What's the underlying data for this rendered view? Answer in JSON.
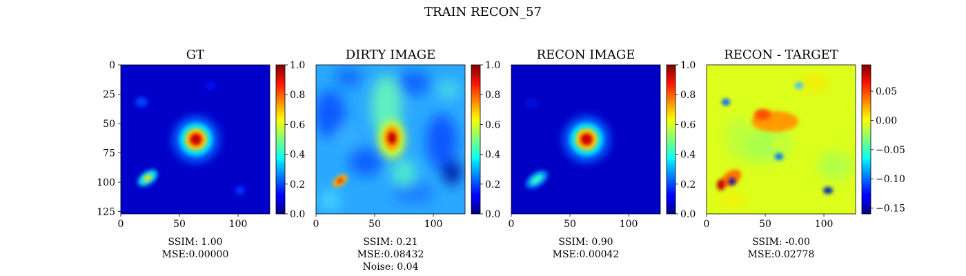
{
  "figure": {
    "suptitle": "TRAIN RECON_57"
  },
  "chart_data": [
    {
      "type": "heatmap",
      "title": "GT",
      "x_ticks": [
        0,
        50,
        100
      ],
      "y_ticks": [
        0,
        25,
        50,
        75,
        100,
        125
      ],
      "xlim": [
        0,
        127
      ],
      "ylim": [
        127,
        0
      ],
      "show_y_ticks": true,
      "colormap": "jet",
      "colorbar": {
        "min": 0.0,
        "max": 1.0,
        "ticks": [
          0.0,
          0.2,
          0.4,
          0.6,
          0.8,
          1.0
        ],
        "tick_labels": [
          "0.0",
          "0.2",
          "0.4",
          "0.6",
          "0.8",
          "1.0"
        ]
      },
      "caption": [
        "SSIM: 1.00",
        "MSE:0.00000"
      ]
    },
    {
      "type": "heatmap",
      "title": "DIRTY IMAGE",
      "x_ticks": [
        0,
        50,
        100
      ],
      "xlim": [
        0,
        127
      ],
      "ylim": [
        127,
        0
      ],
      "show_y_ticks": false,
      "colormap": "jet",
      "colorbar": {
        "min": 0.0,
        "max": 1.0,
        "ticks": [
          0.0,
          0.2,
          0.4,
          0.6,
          0.8,
          1.0
        ],
        "tick_labels": [
          "0.0",
          "0.2",
          "0.4",
          "0.6",
          "0.8",
          "1.0"
        ]
      },
      "caption": [
        "SSIM: 0.21",
        "MSE:0.08432",
        "Noise: 0.04"
      ]
    },
    {
      "type": "heatmap",
      "title": "RECON IMAGE",
      "x_ticks": [
        0,
        50,
        100
      ],
      "xlim": [
        0,
        127
      ],
      "ylim": [
        127,
        0
      ],
      "show_y_ticks": false,
      "colormap": "jet",
      "colorbar": {
        "min": 0.0,
        "max": 1.0,
        "ticks": [
          0.0,
          0.2,
          0.4,
          0.6,
          0.8,
          1.0
        ],
        "tick_labels": [
          "0.0",
          "0.2",
          "0.4",
          "0.6",
          "0.8",
          "1.0"
        ]
      },
      "caption": [
        "SSIM: 0.90",
        "MSE:0.00042"
      ]
    },
    {
      "type": "heatmap",
      "title": "RECON - TARGET",
      "x_ticks": [
        0,
        50,
        100
      ],
      "xlim": [
        0,
        127
      ],
      "ylim": [
        127,
        0
      ],
      "show_y_ticks": false,
      "colormap": "jet",
      "colorbar": {
        "min": -0.16,
        "max": 0.095,
        "ticks": [
          0.05,
          0.0,
          -0.05,
          -0.1,
          -0.15
        ],
        "tick_labels": [
          "0.05",
          "0.00",
          "−0.05",
          "−0.10",
          "−0.15"
        ]
      },
      "caption": [
        "SSIM: -0.00",
        "MSE:0.02778"
      ]
    }
  ]
}
